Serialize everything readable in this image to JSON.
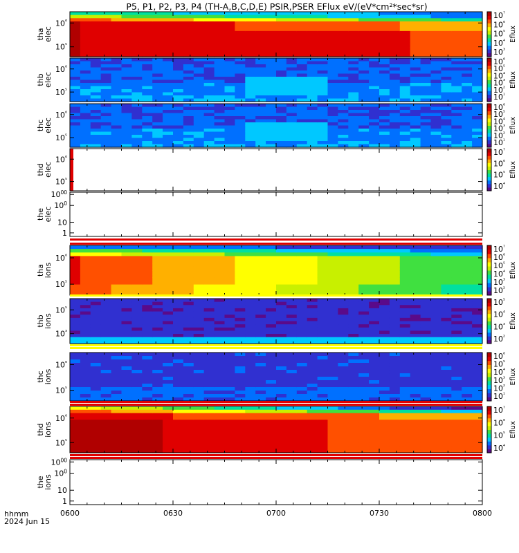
{
  "title": "P5, P1, P2, P3, P4 (TH-A,B,C,D,E) PSIR,PSER EFlux eV/(eV*cm²*sec*sr)",
  "footer": {
    "label": "hhmm",
    "date": "2024 Jun 15"
  },
  "colors": {
    "spectrum": [
      "#5a0a8a",
      "#3030d0",
      "#0070ff",
      "#00c8ff",
      "#00e0a0",
      "#40e040",
      "#c8f000",
      "#ffff00",
      "#ffb000",
      "#ff5000",
      "#e00000",
      "#b00000"
    ]
  },
  "chart_data": {
    "type": "heatmap",
    "x_axis": {
      "ticks": [
        "0600",
        "0630",
        "0700",
        "0730",
        "0800"
      ],
      "range": [
        "0600",
        "0800"
      ]
    },
    "panels": [
      {
        "id": "tha-elec",
        "label": "tha\nelec",
        "yticks": [
          "10⁶",
          "10⁵"
        ],
        "colorbar": [
          "10⁷",
          "10⁶",
          "10⁵",
          "10⁴",
          "10³"
        ],
        "unit": "Eflux",
        "pattern": "hot-decay"
      },
      {
        "id": "thb-elec",
        "label": "thb\nelec",
        "yticks": [
          "10⁶",
          "10⁵"
        ],
        "colorbar": [
          "10⁶",
          "10⁵",
          "10⁴",
          "10³",
          "10²",
          "10¹"
        ],
        "unit": "Eflux",
        "pattern": "noise-blue"
      },
      {
        "id": "thc-elec",
        "label": "thc\nelec",
        "yticks": [
          "10⁶",
          "10⁵"
        ],
        "colorbar": [
          "10⁶",
          "10⁵",
          "10⁴",
          "10³",
          "10²",
          "10¹"
        ],
        "unit": "Eflux",
        "pattern": "noise-blue"
      },
      {
        "id": "thd-elec",
        "label": "thd\nelec",
        "yticks": [
          "10⁶",
          "10⁵"
        ],
        "colorbar": [
          "10⁷",
          "10⁶",
          "10⁵",
          "10⁴"
        ],
        "unit": "Eflux",
        "pattern": "empty"
      },
      {
        "id": "the-elec",
        "label": "the\nelec",
        "yticks": [
          "1000",
          "100",
          "10",
          "1"
        ],
        "colorbar": [],
        "unit": "",
        "pattern": "linear-empty"
      },
      {
        "id": "tha-ions",
        "label": "tha\nions",
        "yticks": [
          "10⁶",
          "10⁵"
        ],
        "colorbar": [
          "10⁷",
          "10⁶",
          "10⁵",
          "10⁴",
          "10³",
          "10²"
        ],
        "unit": "Eflux",
        "pattern": "ions-decay"
      },
      {
        "id": "thb-ions",
        "label": "thb\nions",
        "yticks": [
          "10⁵",
          "10³"
        ],
        "colorbar": [
          "10⁵",
          "10⁴",
          "10³",
          "10²"
        ],
        "unit": "Eflux",
        "pattern": "noise-purple"
      },
      {
        "id": "thc-ions",
        "label": "thc\nions",
        "yticks": [
          "10⁶",
          "10⁵"
        ],
        "colorbar": [
          "10⁶",
          "10⁵",
          "10⁴",
          "10³",
          "10²",
          "10¹"
        ],
        "unit": "Eflux",
        "pattern": "noise-purple2"
      },
      {
        "id": "thd-ions",
        "label": "thd\nions",
        "yticks": [
          "10⁶",
          "10⁵"
        ],
        "colorbar": [
          "10⁷",
          "10⁶",
          "10⁵",
          "10⁴"
        ],
        "unit": "Eflux",
        "pattern": "hot-thd"
      },
      {
        "id": "the-ions",
        "label": "the\nions",
        "yticks": [
          "1000",
          "100",
          "10",
          "1"
        ],
        "colorbar": [],
        "unit": "",
        "pattern": "linear-empty"
      }
    ]
  }
}
